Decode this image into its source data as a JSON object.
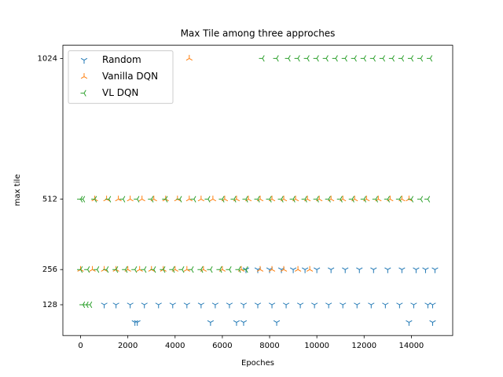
{
  "chart_data": {
    "type": "scatter",
    "title": "Max Tile among three approches",
    "x_label": "Epoches",
    "y_label": "max tile",
    "xlim": [
      -750,
      15750
    ],
    "xticks": [
      0,
      2000,
      4000,
      6000,
      8000,
      10000,
      12000,
      14000
    ],
    "ylim": [
      16,
      1072
    ],
    "yticks": [
      128,
      256,
      512,
      1024
    ],
    "legend": "upper left",
    "series": [
      {
        "name": "Random",
        "color": "#1f77b4",
        "marker": "tri_down",
        "x": [
          2300,
          2400,
          5500,
          6600,
          6900,
          8300,
          13900,
          14900,
          1000,
          1500,
          2100,
          2700,
          3300,
          3900,
          4500,
          5100,
          5700,
          6300,
          6900,
          7500,
          8100,
          8700,
          9300,
          9900,
          10500,
          11100,
          11700,
          12300,
          12900,
          13500,
          14100,
          14700,
          14900,
          7000,
          7500,
          8000,
          8500,
          9000,
          9500,
          10000,
          10600,
          11200,
          11800,
          12400,
          13000,
          13600,
          14200,
          14600,
          15000
        ],
        "values": [
          64,
          64,
          64,
          64,
          64,
          64,
          64,
          64,
          128,
          128,
          128,
          128,
          128,
          128,
          128,
          128,
          128,
          128,
          128,
          128,
          128,
          128,
          128,
          128,
          128,
          128,
          128,
          128,
          128,
          128,
          128,
          128,
          128,
          256,
          256,
          256,
          256,
          256,
          256,
          256,
          256,
          256,
          256,
          256,
          256,
          256,
          256,
          256,
          256
        ]
      },
      {
        "name": "Vanilla DQN",
        "color": "#ff7f0e",
        "marker": "tri_up",
        "x": [
          4600,
          600,
          1100,
          1600,
          2100,
          2600,
          3100,
          3600,
          4100,
          4600,
          5100,
          5600,
          6100,
          6600,
          7100,
          7600,
          8100,
          8600,
          9100,
          9600,
          10100,
          10600,
          11100,
          11600,
          12100,
          12600,
          13100,
          13600,
          13900,
          0,
          500,
          1000,
          1500,
          2000,
          2500,
          3000,
          3500,
          4000,
          4500,
          5200,
          6000,
          6800,
          7600,
          8100,
          8600,
          9200,
          9700
        ],
        "values": [
          1024,
          512,
          512,
          512,
          512,
          512,
          512,
          512,
          512,
          512,
          512,
          512,
          512,
          512,
          512,
          512,
          512,
          512,
          512,
          512,
          512,
          512,
          512,
          512,
          512,
          512,
          512,
          512,
          512,
          256,
          256,
          256,
          256,
          256,
          256,
          256,
          256,
          256,
          256,
          256,
          256,
          256,
          256,
          256,
          256,
          256,
          256
        ]
      },
      {
        "name": "VL DQN",
        "color": "#2ca02c",
        "marker": "tri_left",
        "x": [
          100,
          250,
          400,
          0,
          300,
          700,
          1100,
          1500,
          1900,
          2300,
          2700,
          3100,
          3500,
          3900,
          4300,
          4700,
          5100,
          5500,
          5900,
          6300,
          6700,
          7000,
          0,
          100,
          600,
          1200,
          1800,
          2400,
          3000,
          3600,
          4200,
          4800,
          5400,
          6000,
          6500,
          7000,
          7500,
          8000,
          8500,
          9000,
          9500,
          10000,
          10500,
          11000,
          11500,
          12000,
          12500,
          13000,
          13500,
          14000,
          14400,
          14700,
          7700,
          8300,
          8800,
          9200,
          9600,
          10000,
          10400,
          10800,
          11200,
          11600,
          12000,
          12400,
          12800,
          13200,
          13600,
          14000,
          14400,
          14800
        ],
        "values": [
          128,
          128,
          128,
          256,
          256,
          256,
          256,
          256,
          256,
          256,
          256,
          256,
          256,
          256,
          256,
          256,
          256,
          256,
          256,
          256,
          256,
          256,
          512,
          512,
          512,
          512,
          512,
          512,
          512,
          512,
          512,
          512,
          512,
          512,
          512,
          512,
          512,
          512,
          512,
          512,
          512,
          512,
          512,
          512,
          512,
          512,
          512,
          512,
          512,
          512,
          512,
          512,
          1024,
          1024,
          1024,
          1024,
          1024,
          1024,
          1024,
          1024,
          1024,
          1024,
          1024,
          1024,
          1024,
          1024,
          1024,
          1024,
          1024,
          1024
        ]
      }
    ]
  }
}
